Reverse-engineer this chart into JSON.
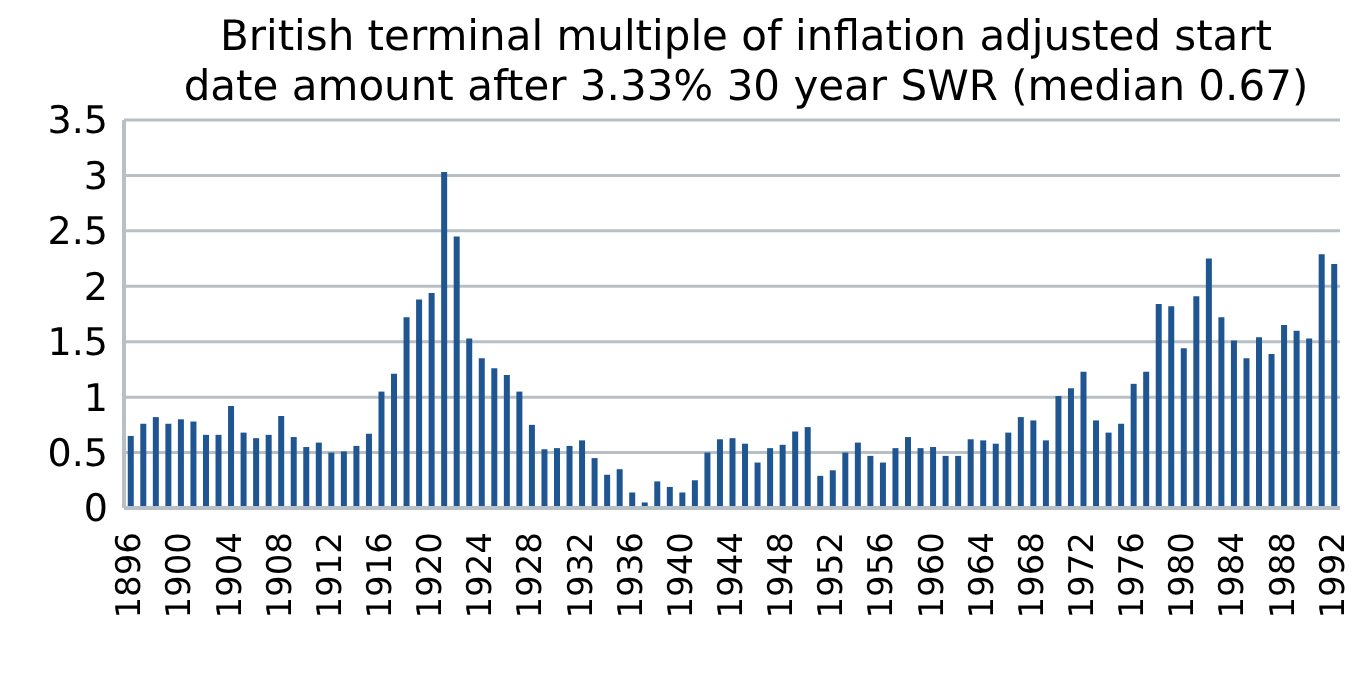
{
  "chart_data": {
    "type": "bar",
    "title": "British terminal multiple of inflation adjusted start\ndate amount after 3.33% 30 year SWR (median 0.67)",
    "categories": [
      "1896",
      null,
      null,
      null,
      "1900",
      null,
      null,
      null,
      "1904",
      null,
      null,
      null,
      "1908",
      null,
      null,
      null,
      "1912",
      null,
      null,
      null,
      "1916",
      null,
      null,
      null,
      "1920",
      null,
      null,
      null,
      "1924",
      null,
      null,
      null,
      "1928",
      null,
      null,
      null,
      "1932",
      null,
      null,
      null,
      "1936",
      null,
      null,
      null,
      "1940",
      null,
      null,
      null,
      "1944",
      null,
      null,
      null,
      "1948",
      null,
      null,
      null,
      "1952",
      null,
      null,
      null,
      "1956",
      null,
      null,
      null,
      "1960",
      null,
      null,
      null,
      "1964",
      null,
      null,
      null,
      "1968",
      null,
      null,
      null,
      "1972",
      null,
      null,
      null,
      "1976",
      null,
      null,
      null,
      "1980",
      null,
      null,
      null,
      "1984",
      null,
      null,
      null,
      "1988",
      null,
      null,
      null,
      "1992"
    ],
    "values": [
      0.65,
      0.76,
      0.82,
      0.76,
      0.8,
      0.78,
      0.66,
      0.66,
      0.92,
      0.68,
      0.63,
      0.66,
      0.83,
      0.64,
      0.55,
      0.59,
      0.5,
      0.51,
      0.56,
      0.67,
      1.05,
      1.21,
      1.72,
      1.88,
      1.94,
      3.03,
      2.45,
      1.53,
      1.35,
      1.26,
      1.2,
      1.05,
      0.75,
      0.53,
      0.54,
      0.56,
      0.61,
      0.45,
      0.3,
      0.35,
      0.14,
      0.05,
      0.24,
      0.19,
      0.14,
      0.25,
      0.5,
      0.62,
      0.63,
      0.58,
      0.41,
      0.54,
      0.57,
      0.69,
      0.73,
      0.29,
      0.34,
      0.5,
      0.59,
      0.47,
      0.41,
      0.54,
      0.64,
      0.54,
      0.55,
      0.47,
      0.47,
      0.62,
      0.61,
      0.58,
      0.68,
      0.82,
      0.79,
      0.61,
      1.01,
      1.08,
      1.23,
      0.79,
      0.68,
      0.76,
      1.12,
      1.23,
      1.84,
      1.82,
      1.44,
      1.91,
      2.25,
      1.72,
      1.51,
      1.35,
      1.54,
      1.39,
      1.65,
      1.6,
      1.53,
      2.29,
      2.2
    ],
    "color": "#1f5591",
    "ylim": [
      0,
      3.5
    ],
    "yticks": [
      0,
      0.5,
      1,
      1.5,
      2,
      2.5,
      3,
      3.5
    ],
    "grid": "y"
  }
}
